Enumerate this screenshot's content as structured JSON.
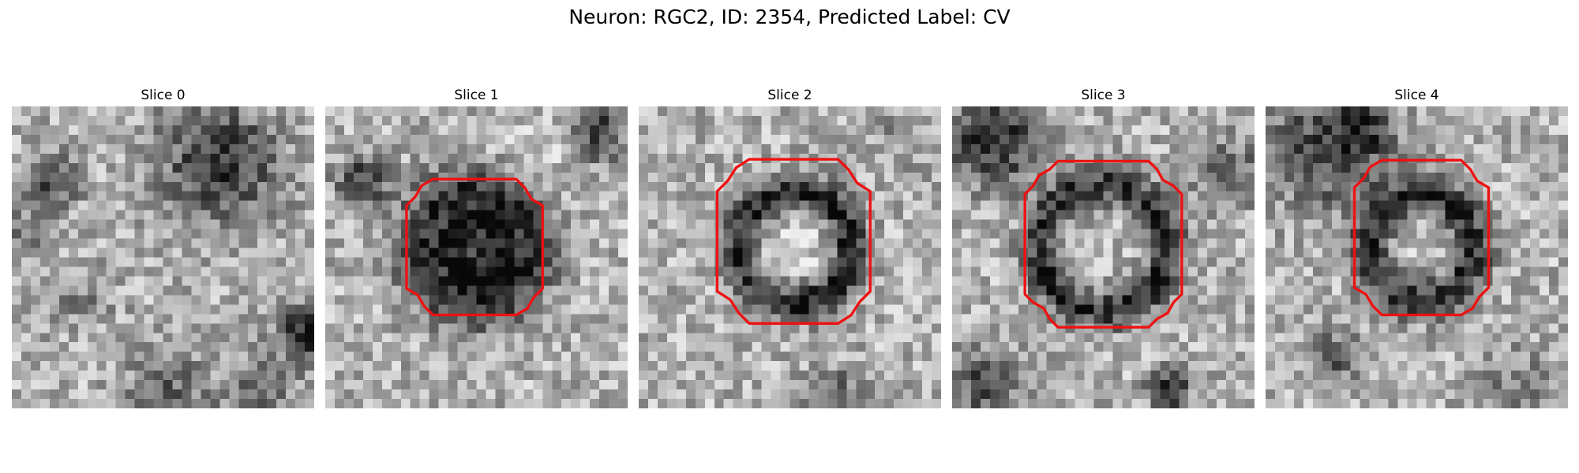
{
  "figure": {
    "title": "Neuron: RGC2, ID: 2354, Predicted Label: CV"
  },
  "slices": [
    {
      "title": "Slice 0",
      "contour": false
    },
    {
      "title": "Slice 1",
      "contour": true
    },
    {
      "title": "Slice 2",
      "contour": true
    },
    {
      "title": "Slice 3",
      "contour": true
    },
    {
      "title": "Slice 4",
      "contour": true
    }
  ],
  "colors": {
    "contour": "#ee1111",
    "colormap": "gray"
  }
}
